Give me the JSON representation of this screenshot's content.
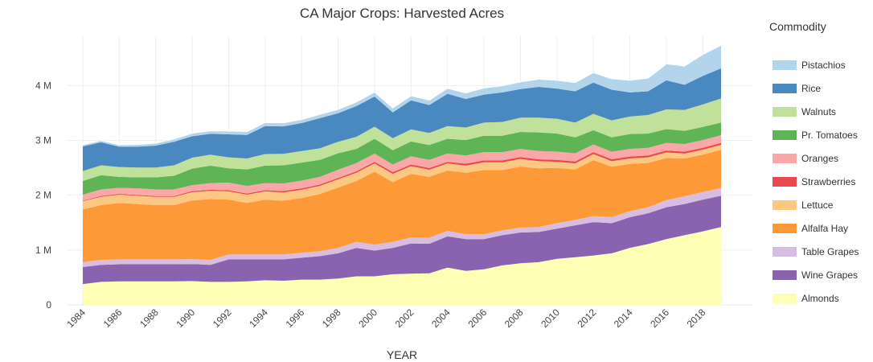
{
  "chart_data": {
    "type": "area",
    "stacked": true,
    "title": "CA Major Crops:  Harvested Acres",
    "xlabel": "YEAR",
    "ylabel": "",
    "x": [
      1984,
      1985,
      1986,
      1987,
      1988,
      1989,
      1990,
      1991,
      1992,
      1993,
      1994,
      1995,
      1996,
      1997,
      1998,
      1999,
      2000,
      2001,
      2002,
      2003,
      2004,
      2005,
      2006,
      2007,
      2008,
      2009,
      2010,
      2011,
      2012,
      2013,
      2014,
      2015,
      2016,
      2017,
      2018,
      2019
    ],
    "x_ticks": [
      "1984",
      "1986",
      "1988",
      "1990",
      "1992",
      "1994",
      "1996",
      "1998",
      "2000",
      "2002",
      "2004",
      "2006",
      "2008",
      "2010",
      "2012",
      "2014",
      "2016",
      "2018"
    ],
    "y_ticks": [
      {
        "value": 0,
        "label": "0"
      },
      {
        "value": 1000000,
        "label": "1 M"
      },
      {
        "value": 2000000,
        "label": "2 M"
      },
      {
        "value": 3000000,
        "label": "3 M"
      },
      {
        "value": 4000000,
        "label": "4 M"
      }
    ],
    "ylim": [
      0,
      4900000
    ],
    "grid": true,
    "legend_title": "Commodity",
    "legend_position": "right",
    "series": [
      {
        "name": "Almonds",
        "color": "#ffffb3",
        "values": [
          380000,
          420000,
          430000,
          430000,
          430000,
          430000,
          435000,
          420000,
          420000,
          430000,
          450000,
          440000,
          460000,
          460000,
          480000,
          520000,
          520000,
          560000,
          570000,
          575000,
          680000,
          620000,
          650000,
          720000,
          760000,
          780000,
          840000,
          870000,
          900000,
          940000,
          1040000,
          1110000,
          1200000,
          1270000,
          1340000,
          1420000
        ]
      },
      {
        "name": "Wine Grapes",
        "color": "#8a63b0",
        "values": [
          310000,
          310000,
          310000,
          310000,
          310000,
          310000,
          310000,
          310000,
          410000,
          400000,
          380000,
          390000,
          400000,
          430000,
          460000,
          520000,
          470000,
          480000,
          550000,
          540000,
          570000,
          580000,
          550000,
          550000,
          560000,
          550000,
          550000,
          580000,
          610000,
          550000,
          560000,
          560000,
          580000,
          570000,
          580000,
          570000
        ]
      },
      {
        "name": "Table Grapes",
        "color": "#d7bde2",
        "values": [
          90000,
          90000,
          90000,
          90000,
          90000,
          90000,
          90000,
          90000,
          90000,
          90000,
          90000,
          90000,
          90000,
          90000,
          100000,
          110000,
          110000,
          110000,
          110000,
          110000,
          100000,
          90000,
          90000,
          90000,
          90000,
          90000,
          100000,
          100000,
          110000,
          110000,
          110000,
          110000,
          130000,
          140000,
          140000,
          140000
        ]
      },
      {
        "name": "Alfalfa Hay",
        "color": "#fd9a37",
        "values": [
          960000,
          1000000,
          1030000,
          1010000,
          990000,
          990000,
          1070000,
          1110000,
          1000000,
          940000,
          1000000,
          980000,
          1000000,
          1040000,
          1100000,
          1110000,
          1330000,
          1090000,
          1160000,
          1110000,
          1100000,
          1120000,
          1170000,
          1100000,
          1110000,
          1070000,
          1010000,
          920000,
          1020000,
          920000,
          860000,
          810000,
          770000,
          690000,
          680000,
          700000
        ]
      },
      {
        "name": "Lettuce",
        "color": "#fcc881",
        "values": [
          150000,
          150000,
          150000,
          150000,
          150000,
          150000,
          150000,
          150000,
          150000,
          150000,
          150000,
          150000,
          150000,
          150000,
          150000,
          150000,
          150000,
          150000,
          140000,
          130000,
          130000,
          130000,
          140000,
          140000,
          140000,
          130000,
          110000,
          110000,
          110000,
          100000,
          100000,
          100000,
          100000,
          90000,
          90000,
          90000
        ]
      },
      {
        "name": "Strawberries",
        "color": "#e8484e",
        "values": [
          10000,
          15000,
          15000,
          15000,
          15000,
          15000,
          20000,
          20000,
          20000,
          20000,
          20000,
          25000,
          25000,
          25000,
          25000,
          25000,
          30000,
          30000,
          30000,
          30000,
          30000,
          35000,
          35000,
          35000,
          35000,
          35000,
          35000,
          35000,
          35000,
          35000,
          35000,
          35000,
          35000,
          35000,
          35000,
          35000
        ]
      },
      {
        "name": "Oranges",
        "color": "#fba7a7",
        "values": [
          110000,
          120000,
          110000,
          120000,
          120000,
          120000,
          110000,
          120000,
          140000,
          140000,
          130000,
          140000,
          140000,
          140000,
          150000,
          150000,
          150000,
          140000,
          150000,
          150000,
          150000,
          150000,
          150000,
          150000,
          150000,
          150000,
          150000,
          150000,
          140000,
          140000,
          140000,
          140000,
          140000,
          140000,
          140000,
          140000
        ]
      },
      {
        "name": "Pr. Tomatoes",
        "color": "#5fb456",
        "values": [
          250000,
          260000,
          200000,
          200000,
          220000,
          250000,
          300000,
          320000,
          260000,
          300000,
          320000,
          330000,
          330000,
          310000,
          300000,
          260000,
          270000,
          260000,
          270000,
          270000,
          270000,
          280000,
          300000,
          300000,
          310000,
          340000,
          330000,
          290000,
          260000,
          260000,
          270000,
          260000,
          250000,
          240000,
          240000,
          230000
        ]
      },
      {
        "name": "Walnuts",
        "color": "#c0e199",
        "values": [
          180000,
          180000,
          180000,
          180000,
          180000,
          190000,
          200000,
          200000,
          200000,
          200000,
          210000,
          210000,
          210000,
          210000,
          210000,
          220000,
          220000,
          220000,
          220000,
          220000,
          230000,
          230000,
          240000,
          250000,
          260000,
          270000,
          270000,
          270000,
          300000,
          310000,
          320000,
          340000,
          360000,
          380000,
          410000,
          440000
        ]
      },
      {
        "name": "Rice",
        "color": "#4a88c0",
        "values": [
          450000,
          420000,
          370000,
          380000,
          400000,
          430000,
          390000,
          380000,
          420000,
          430000,
          510000,
          500000,
          510000,
          550000,
          520000,
          560000,
          550000,
          470000,
          530000,
          510000,
          590000,
          520000,
          510000,
          540000,
          520000,
          560000,
          550000,
          570000,
          570000,
          560000,
          440000,
          430000,
          530000,
          460000,
          520000,
          550000
        ]
      },
      {
        "name": "Pistachios",
        "color": "#b3d5eb",
        "values": [
          30000,
          35000,
          35000,
          40000,
          45000,
          50000,
          55000,
          55000,
          60000,
          60000,
          65000,
          65000,
          65000,
          70000,
          70000,
          75000,
          80000,
          80000,
          85000,
          90000,
          100000,
          110000,
          120000,
          120000,
          130000,
          140000,
          150000,
          160000,
          180000,
          200000,
          220000,
          240000,
          300000,
          340000,
          390000,
          420000
        ]
      }
    ]
  }
}
